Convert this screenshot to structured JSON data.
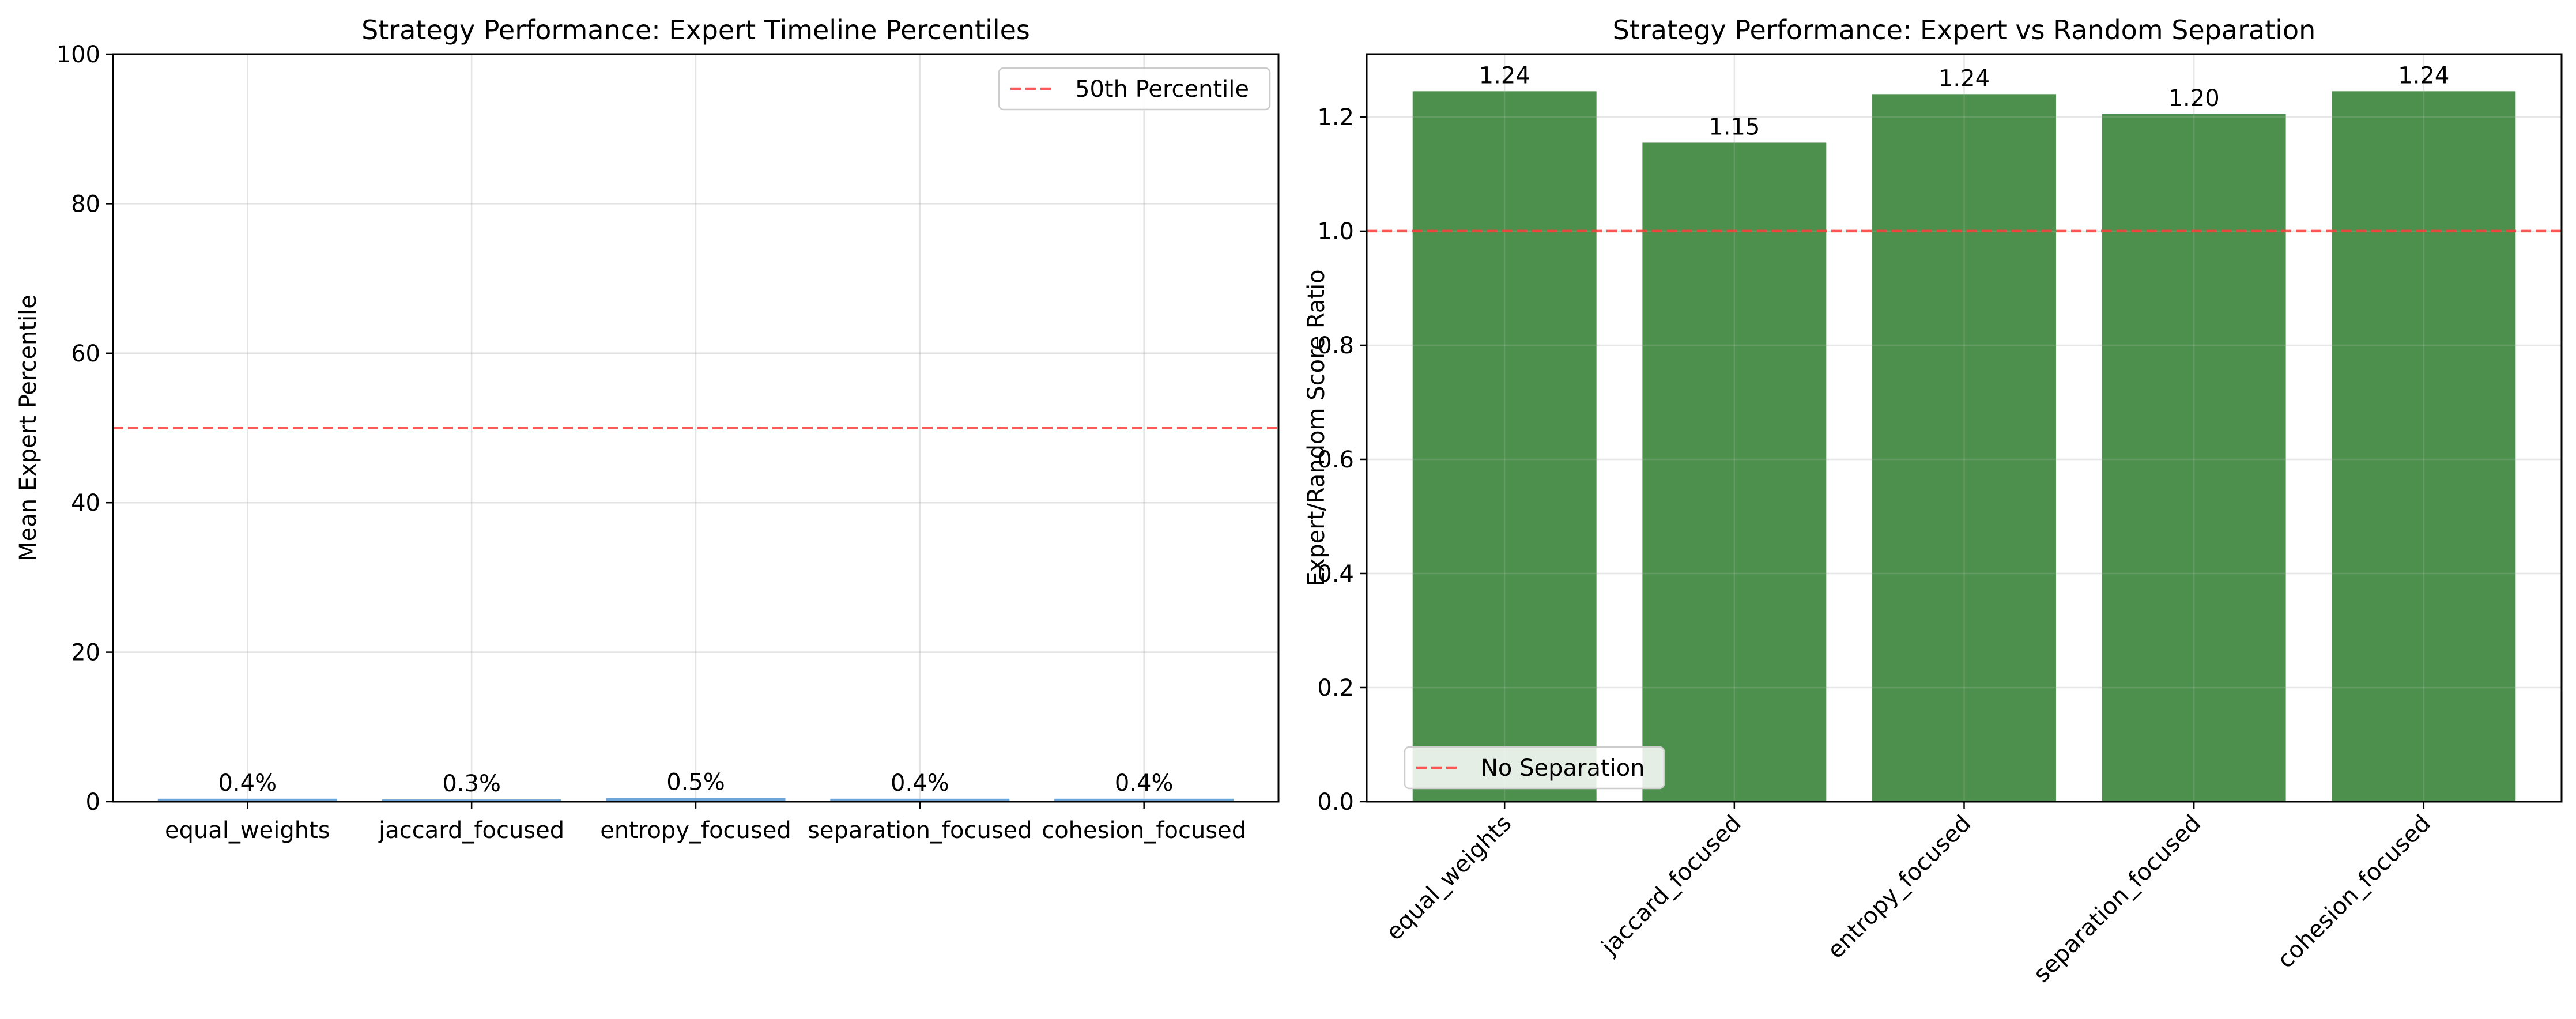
{
  "chart_data": [
    {
      "type": "bar",
      "title": "Strategy Performance: Expert Timeline Percentiles",
      "xlabel": "",
      "ylabel": "Mean Expert Percentile",
      "categories": [
        "equal_weights",
        "jaccard_focused",
        "entropy_focused",
        "separation_focused",
        "cohesion_focused"
      ],
      "values": [
        0.4,
        0.3,
        0.5,
        0.4,
        0.4
      ],
      "data_labels": [
        "0.4%",
        "0.3%",
        "0.5%",
        "0.4%",
        "0.4%"
      ],
      "ylim": [
        0,
        100
      ],
      "yticks": [
        0,
        20,
        40,
        60,
        80,
        100
      ],
      "bar_color": "#5b9bd5",
      "reference_line": {
        "y": 50,
        "label": "50th Percentile",
        "color": "#ff3b3b",
        "style": "dashed"
      },
      "legend_position": "top-right",
      "grid": true,
      "xtick_rotation": 0
    },
    {
      "type": "bar",
      "title": "Strategy Performance: Expert vs Random Separation",
      "xlabel": "",
      "ylabel": "Expert/Random Score Ratio",
      "categories": [
        "equal_weights",
        "jaccard_focused",
        "entropy_focused",
        "separation_focused",
        "cohesion_focused"
      ],
      "values": [
        1.245,
        1.155,
        1.24,
        1.205,
        1.245
      ],
      "data_labels": [
        "1.24",
        "1.15",
        "1.24",
        "1.20",
        "1.24"
      ],
      "ylim": [
        0,
        1.31
      ],
      "yticks": [
        0.0,
        0.2,
        0.4,
        0.6,
        0.8,
        1.0,
        1.2
      ],
      "ytick_labels": [
        "0.0",
        "0.2",
        "0.4",
        "0.6",
        "0.8",
        "1.0",
        "1.2"
      ],
      "bar_color": "#4d8f4d",
      "reference_line": {
        "y": 1.0,
        "label": "No Separation",
        "color": "#ff3b3b",
        "style": "dashed"
      },
      "legend_position": "lower-left",
      "grid": true,
      "xtick_rotation": -45
    }
  ]
}
